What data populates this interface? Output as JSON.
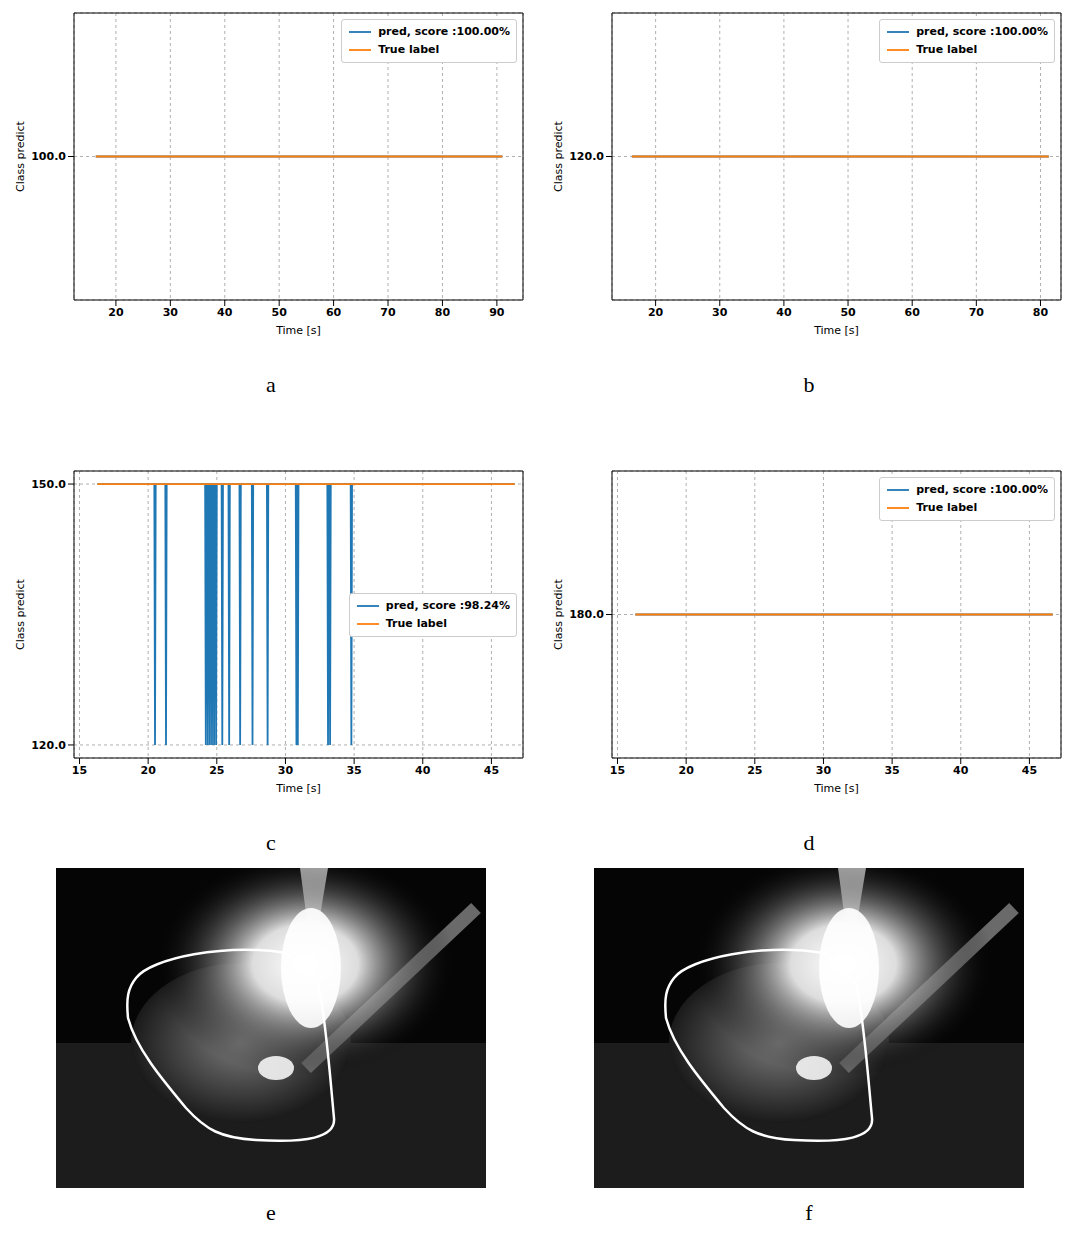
{
  "chart_data": [
    {
      "type": "line",
      "caption": "a",
      "x_label": "Time [s]",
      "y_label": "Class predict",
      "grid": true,
      "legend": "upper right",
      "xlim": [
        12.3,
        94.8
      ],
      "xticks": [
        20,
        30,
        40,
        50,
        60,
        70,
        80,
        90
      ],
      "ylim": [
        95,
        105
      ],
      "yticks": [
        {
          "value": 100,
          "label": "100.0"
        }
      ],
      "series": [
        {
          "name": "pred, score :100.00%",
          "color": "#1f77b4",
          "x": [
            16.3,
            91
          ],
          "values": [
            100,
            100
          ]
        },
        {
          "name": "True label",
          "color": "#ff7f0e",
          "x": [
            16.3,
            91
          ],
          "values": [
            100,
            100
          ]
        }
      ]
    },
    {
      "type": "line",
      "caption": "b",
      "x_label": "Time [s]",
      "y_label": "Class predict",
      "grid": true,
      "legend": "upper right",
      "xlim": [
        13.2,
        83.2
      ],
      "xticks": [
        20,
        30,
        40,
        50,
        60,
        70,
        80
      ],
      "ylim": [
        114,
        126
      ],
      "yticks": [
        {
          "value": 120,
          "label": "120.0"
        }
      ],
      "series": [
        {
          "name": "pred, score :100.00%",
          "color": "#1f77b4",
          "x": [
            16.3,
            81.3
          ],
          "values": [
            120,
            120
          ]
        },
        {
          "name": "True label",
          "color": "#ff7f0e",
          "x": [
            16.3,
            81.3
          ],
          "values": [
            120,
            120
          ]
        }
      ]
    },
    {
      "type": "line",
      "caption": "c",
      "x_label": "Time [s]",
      "y_label": "Class predict",
      "grid": true,
      "legend": "center right",
      "xlim": [
        14.6,
        47.3
      ],
      "xticks": [
        15,
        20,
        25,
        30,
        35,
        40,
        45
      ],
      "ylim": [
        118.5,
        151.5
      ],
      "yticks": [
        {
          "value": 120,
          "label": "120.0"
        },
        {
          "value": 150,
          "label": "150.0"
        }
      ],
      "series": [
        {
          "name": "pred, score :98.24%",
          "color": "#1f77b4",
          "x": [
            16.3,
            20.45,
            20.5,
            20.55,
            21.25,
            21.3,
            21.35,
            24.15,
            24.2,
            24.25,
            24.3,
            24.35,
            24.4,
            24.45,
            24.5,
            24.55,
            24.6,
            24.65,
            24.7,
            24.75,
            24.8,
            24.85,
            24.9,
            24.95,
            25.0,
            25.35,
            25.4,
            25.45,
            25.85,
            25.9,
            25.95,
            26.65,
            26.7,
            26.75,
            27.55,
            27.6,
            27.65,
            28.65,
            28.7,
            28.75,
            30.75,
            30.8,
            30.85,
            30.9,
            30.95,
            33.05,
            33.1,
            33.15,
            33.2,
            33.25,
            33.3,
            34.75,
            34.8,
            34.85,
            46.7
          ],
          "values": [
            150,
            150,
            120,
            150,
            150,
            120,
            150,
            150,
            120,
            150,
            150,
            120,
            150,
            150,
            120,
            150,
            150,
            120,
            150,
            150,
            120,
            150,
            150,
            120,
            150,
            150,
            120,
            150,
            150,
            120,
            150,
            150,
            120,
            150,
            150,
            120,
            150,
            150,
            120,
            150,
            150,
            120,
            150,
            120,
            150,
            150,
            120,
            150,
            150,
            120,
            150,
            150,
            120,
            150,
            150
          ]
        },
        {
          "name": "True label",
          "color": "#ff7f0e",
          "x": [
            16.3,
            46.7
          ],
          "values": [
            150,
            150
          ]
        }
      ]
    },
    {
      "type": "line",
      "caption": "d",
      "x_label": "Time [s]",
      "y_label": "Class predict",
      "grid": true,
      "legend": "upper right",
      "xlim": [
        14.6,
        47.3
      ],
      "xticks": [
        15,
        20,
        25,
        30,
        35,
        40,
        45
      ],
      "ylim": [
        174,
        186
      ],
      "yticks": [
        {
          "value": 180,
          "label": "180.0"
        }
      ],
      "series": [
        {
          "name": "pred, score :100.00%",
          "color": "#1f77b4",
          "x": [
            16.3,
            46.7
          ],
          "values": [
            180,
            180
          ]
        },
        {
          "name": "True label",
          "color": "#ff7f0e",
          "x": [
            16.3,
            46.7
          ],
          "values": [
            180,
            180
          ]
        }
      ]
    }
  ],
  "images": [
    {
      "caption": "e"
    },
    {
      "caption": "f"
    }
  ]
}
